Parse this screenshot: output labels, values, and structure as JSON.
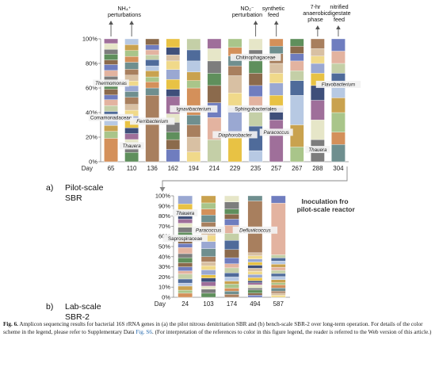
{
  "palette": [
    "#d4905a",
    "#6f7dbf",
    "#e8c244",
    "#a9c58a",
    "#8b6a4c",
    "#9aa8d2",
    "#c9a24f",
    "#5f8f5c",
    "#f0d98a",
    "#b7c9e3",
    "#7d7d7d",
    "#d8c0a3",
    "#4f6b9a",
    "#e6e6c8",
    "#a87f5e",
    "#c4cfa7",
    "#9f6f9a",
    "#6f8f8f",
    "#e3b3a0",
    "#3f4f7a"
  ],
  "chart_data": [
    {
      "type": "bar",
      "subtype": "stacked-100",
      "title": "",
      "panel_label": "a)",
      "panel_title": [
        "Pilot-scale",
        "SBR"
      ],
      "x_prefix": "Day",
      "categories": [
        "65",
        "110",
        "136",
        "162",
        "194",
        "214",
        "229",
        "235",
        "257",
        "267",
        "288",
        "304"
      ],
      "ylim": [
        0,
        100
      ],
      "yticks": [
        "0%",
        "20%",
        "40%",
        "60%",
        "80%",
        "100%"
      ],
      "bars": [
        [
          20,
          6,
          5,
          6,
          6,
          5,
          5,
          4,
          5,
          6,
          5,
          5,
          5,
          4,
          5,
          4,
          5,
          4
        ],
        [
          8,
          5,
          6,
          5,
          5,
          6,
          4,
          5,
          5,
          6,
          5,
          5,
          4,
          5,
          5,
          6,
          5,
          5,
          5,
          5
        ],
        [
          54,
          6,
          5,
          4,
          5,
          4,
          5,
          4,
          4,
          4,
          5
        ],
        [
          10,
          8,
          6,
          8,
          7,
          14,
          6,
          8,
          8,
          7,
          5,
          6,
          7
        ],
        [
          8,
          12,
          10,
          8,
          22,
          6,
          7,
          9,
          9,
          9
        ],
        [
          18,
          18,
          12,
          14,
          10,
          10,
          10,
          8
        ],
        [
          20,
          24,
          12,
          14,
          8,
          8,
          7,
          7
        ],
        [
          9,
          20,
          14,
          10,
          9,
          10,
          10,
          9,
          9
        ],
        [
          34,
          10,
          10,
          10,
          8,
          8,
          8,
          6,
          6
        ],
        [
          12,
          18,
          24,
          12,
          8,
          8,
          6,
          6,
          6
        ],
        [
          18,
          16,
          16,
          12,
          10,
          8,
          6,
          6,
          8
        ],
        [
          14,
          10,
          16,
          12,
          10,
          10,
          8,
          10,
          10
        ]
      ],
      "annotations": [
        {
          "text": "NH₄⁺ perturbations",
          "arrows_at": [
            "65",
            "110"
          ]
        },
        {
          "text": "NO₂⁻ perturbation",
          "arrows_at": [
            "235"
          ]
        },
        {
          "text": "synthetic feed",
          "arrows_at": [
            "257"
          ]
        },
        {
          "text": "7-hr anaerobic phase",
          "arrows_at": [
            "288"
          ]
        },
        {
          "text": "nitrified digestate feed",
          "arrows_at": [
            "304"
          ]
        }
      ],
      "taxa_labels": [
        {
          "text": "Thermomonas",
          "italic": true,
          "near": "65",
          "y": 63
        },
        {
          "text": "Comamonadaceae",
          "italic": false,
          "near": "65",
          "y": 35
        },
        {
          "text": "Thauera",
          "italic": true,
          "near": "110",
          "y": 12
        },
        {
          "text": "Ferribacterium",
          "italic": true,
          "near": "136",
          "y": 32
        },
        {
          "text": "Ignavibacterium",
          "italic": true,
          "near": "194",
          "y": 42
        },
        {
          "text": "Chitinophagaceae",
          "italic": false,
          "near": "235",
          "y": 84
        },
        {
          "text": "Sphingobacteriales",
          "italic": false,
          "near": "235",
          "y": 42
        },
        {
          "text": "Diaphorobacter",
          "italic": true,
          "near": "229",
          "y": 21
        },
        {
          "text": "Paracoccus",
          "italic": true,
          "near": "257",
          "y": 23
        },
        {
          "text": "Thauera",
          "italic": true,
          "near": "288",
          "y": 9
        },
        {
          "text": "Flavobacterium",
          "italic": true,
          "near": "304",
          "y": 62
        }
      ]
    },
    {
      "type": "bar",
      "subtype": "stacked-100",
      "title": "",
      "panel_label": "b)",
      "panel_title": [
        "Lab-scale",
        "SBR-2"
      ],
      "x_prefix": "Day",
      "categories": [
        "24",
        "103",
        "174",
        "494",
        "587"
      ],
      "ylim": [
        0,
        100
      ],
      "yticks": [
        "0%",
        "10%",
        "20%",
        "30%",
        "40%",
        "50%",
        "60%",
        "70%",
        "80%",
        "90%",
        "100%"
      ],
      "bars": [
        [
          4,
          3,
          4,
          3,
          4,
          5,
          3,
          4,
          4,
          5,
          4,
          6,
          4,
          5,
          6,
          5,
          4,
          4,
          8,
          7,
          8
        ],
        [
          4,
          4,
          3,
          4,
          4,
          3,
          5,
          4,
          4,
          5,
          8,
          7,
          6,
          5,
          8,
          7,
          6,
          6,
          7
        ],
        [
          3,
          3,
          3,
          4,
          3,
          4,
          4,
          5,
          4,
          6,
          8,
          9,
          7,
          8,
          6,
          5,
          5,
          7,
          6
        ],
        [
          2,
          2,
          3,
          2,
          3,
          2,
          2,
          3,
          3,
          3,
          3,
          3,
          3,
          3,
          3,
          3,
          50,
          5
        ],
        [
          2,
          2,
          2,
          3,
          3,
          2,
          3,
          3,
          3,
          3,
          3,
          3,
          3,
          3,
          3,
          50,
          7
        ]
      ],
      "annotations": [
        {
          "text": "Inoculation from pilot-scale reactor"
        }
      ],
      "taxa_labels": [
        {
          "text": "Thauera",
          "italic": true,
          "near": "24",
          "y": 82
        },
        {
          "text": "Saprospiraceae",
          "italic": false,
          "near": "24",
          "y": 57
        },
        {
          "text": "Paracoccus",
          "italic": true,
          "near": "103",
          "y": 65
        },
        {
          "text": "Defluviicoccus",
          "italic": true,
          "near": "494",
          "y": 65
        }
      ]
    }
  ],
  "caption": {
    "lead": "Fig. 6.",
    "text": "Amplicon sequencing results for bacterial 16S rRNA genes in (a) the pilot nitrous denitritation SBR and (b) bench-scale SBR-2 over long-term operation. For details of the color scheme in the legend, please refer to Supplementary Data ",
    "link": "Fig. S6",
    "tail": ". (For interpretation of the references to color in this figure legend, the reader is referred to the Web version of this article.)"
  }
}
